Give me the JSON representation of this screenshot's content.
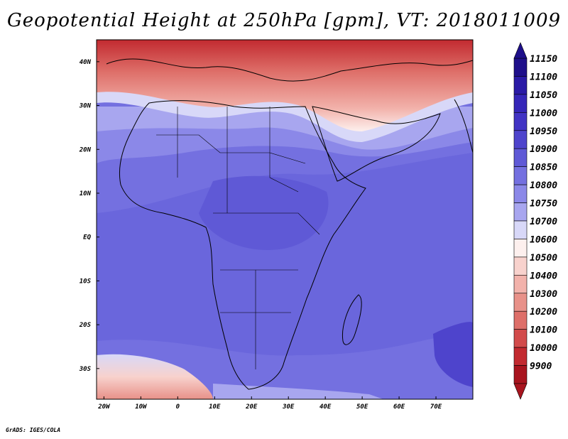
{
  "header": {
    "title": "Geopotential Height at 250hPa [gpm], VT: 2018011009"
  },
  "footer": {
    "credit": "GrADS: IGES/COLA"
  },
  "map": {
    "lon_range": [
      -22,
      80
    ],
    "lat_range": [
      -37,
      45
    ],
    "x_ticks": [
      {
        "lon": -20,
        "label": "20W"
      },
      {
        "lon": -10,
        "label": "10W"
      },
      {
        "lon": 0,
        "label": "0"
      },
      {
        "lon": 10,
        "label": "10E"
      },
      {
        "lon": 20,
        "label": "20E"
      },
      {
        "lon": 30,
        "label": "30E"
      },
      {
        "lon": 40,
        "label": "40E"
      },
      {
        "lon": 50,
        "label": "50E"
      },
      {
        "lon": 60,
        "label": "60E"
      },
      {
        "lon": 70,
        "label": "70E"
      }
    ],
    "y_ticks": [
      {
        "lat": 40,
        "label": "40N"
      },
      {
        "lat": 30,
        "label": "30N"
      },
      {
        "lat": 20,
        "label": "20N"
      },
      {
        "lat": 10,
        "label": "10N"
      },
      {
        "lat": 0,
        "label": "EQ"
      },
      {
        "lat": -10,
        "label": "10S"
      },
      {
        "lat": -20,
        "label": "20S"
      },
      {
        "lat": -30,
        "label": "30S"
      }
    ]
  },
  "colorbar": {
    "levels": [
      {
        "value": "11150",
        "color": "#1e0f8a"
      },
      {
        "value": "11100",
        "color": "#2a1aa6"
      },
      {
        "value": "11050",
        "color": "#3526b8"
      },
      {
        "value": "11000",
        "color": "#4133c4"
      },
      {
        "value": "10950",
        "color": "#4e44cc"
      },
      {
        "value": "10900",
        "color": "#5f59d6"
      },
      {
        "value": "10850",
        "color": "#7470e0"
      },
      {
        "value": "10800",
        "color": "#8b88e8"
      },
      {
        "value": "10750",
        "color": "#a8a6ef"
      },
      {
        "value": "10700",
        "color": "#d8d8f8"
      },
      {
        "value": "10600",
        "color": "#fdf0ee"
      },
      {
        "value": "10500",
        "color": "#f8d2cd"
      },
      {
        "value": "10400",
        "color": "#f2b2ab"
      },
      {
        "value": "10300",
        "color": "#e89189"
      },
      {
        "value": "10200",
        "color": "#de6f69"
      },
      {
        "value": "10100",
        "color": "#d24b4b"
      },
      {
        "value": "10000",
        "color": "#c22a30"
      },
      {
        "value": "9900",
        "color": "#a8141e"
      }
    ]
  }
}
